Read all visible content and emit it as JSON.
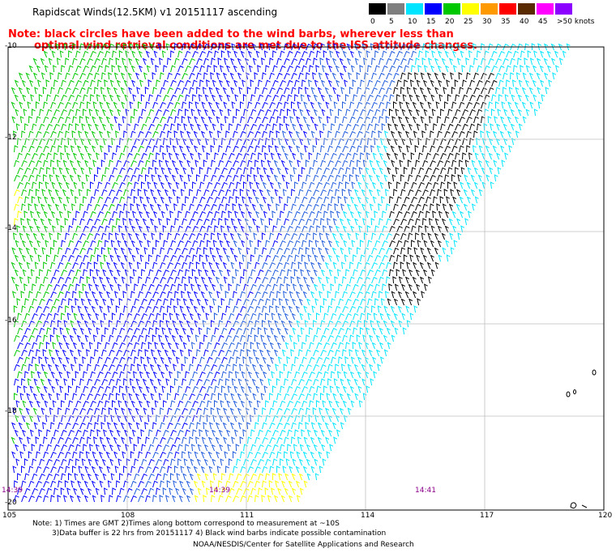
{
  "header": {
    "title": "Rapidscat Winds(12.5KM) v1 20151117 ascending",
    "note_line1": "Note: black circles have been added to the wind barbs, wherever less than",
    "note_line2": "optimal wind retrieval conditions are met due to the ISS attitude changes."
  },
  "legend": {
    "unit": "knots",
    "entries": [
      {
        "label": "0",
        "color": "#000000"
      },
      {
        "label": "5",
        "color": "#7f7f7f"
      },
      {
        "label": "10",
        "color": "#00e5ff"
      },
      {
        "label": "15",
        "color": "#0000ff"
      },
      {
        "label": "20",
        "color": "#00c800"
      },
      {
        "label": "25",
        "color": "#ffff00"
      },
      {
        "label": "30",
        "color": "#ff9900"
      },
      {
        "label": "35",
        "color": "#ff0000"
      },
      {
        "label": "40",
        "color": "#5a2a00"
      },
      {
        "label": "45",
        "color": "#ff00ff"
      },
      {
        "label": ">50 knots",
        "color": "#8b00ff"
      }
    ]
  },
  "map": {
    "lat_labels": [
      "-10",
      "-12",
      "-14",
      "-16",
      "-18",
      "-20"
    ],
    "lon_labels": [
      "105",
      "108",
      "111",
      "114",
      "117",
      "120"
    ],
    "time_labels": [
      "14:39",
      "14:39",
      "14:41"
    ]
  },
  "footer": {
    "line1": "Note: 1) Times are GMT 2)Times along bottom correspond to measurement at ~10S",
    "line2": "3)Data buffer is 22 hrs from 20151117 4) Black wind barbs indicate possible contamination",
    "line3": "NOAA/NESDIS/Center for Satellite Applications and Research"
  }
}
